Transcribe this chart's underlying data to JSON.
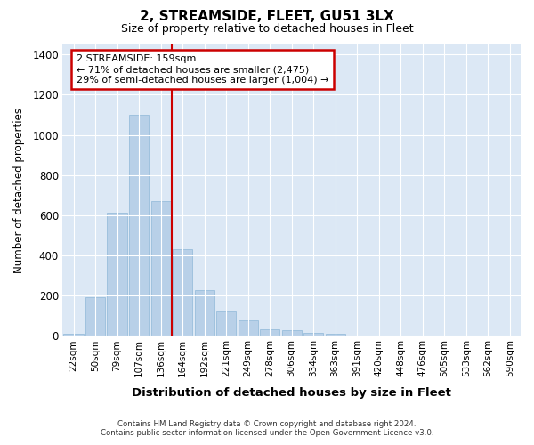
{
  "title": "2, STREAMSIDE, FLEET, GU51 3LX",
  "subtitle": "Size of property relative to detached houses in Fleet",
  "xlabel": "Distribution of detached houses by size in Fleet",
  "ylabel": "Number of detached properties",
  "footer_line1": "Contains HM Land Registry data © Crown copyright and database right 2024.",
  "footer_line2": "Contains public sector information licensed under the Open Government Licence v3.0.",
  "annotation_line1": "2 STREAMSIDE: 159sqm",
  "annotation_line2": "← 71% of detached houses are smaller (2,475)",
  "annotation_line3": "29% of semi-detached houses are larger (1,004) →",
  "bar_labels": [
    "22sqm",
    "50sqm",
    "79sqm",
    "107sqm",
    "136sqm",
    "164sqm",
    "192sqm",
    "221sqm",
    "249sqm",
    "278sqm",
    "306sqm",
    "334sqm",
    "363sqm",
    "391sqm",
    "420sqm",
    "448sqm",
    "476sqm",
    "505sqm",
    "533sqm",
    "562sqm",
    "590sqm"
  ],
  "bar_values": [
    10,
    190,
    610,
    1100,
    670,
    430,
    225,
    125,
    75,
    30,
    25,
    15,
    10,
    0,
    0,
    0,
    0,
    0,
    0,
    0,
    0
  ],
  "bar_color": "#b8d0e8",
  "bar_edgecolor": "#8fb8d8",
  "marker_index": 5,
  "marker_color": "#cc0000",
  "ylim": [
    0,
    1450
  ],
  "yticks": [
    0,
    200,
    400,
    600,
    800,
    1000,
    1200,
    1400
  ],
  "fig_bg_color": "#ffffff",
  "plot_bg_color": "#dce8f5",
  "grid_color": "#ffffff"
}
